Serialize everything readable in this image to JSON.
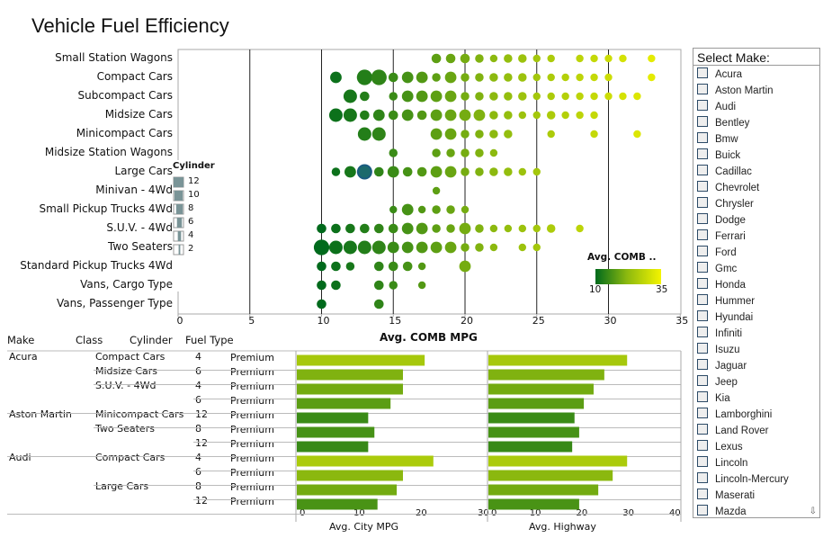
{
  "title": "Vehicle Fuel Efficiency",
  "chart_data": [
    {
      "type": "scatter",
      "title": "",
      "xlabel": "Avg. COMB MPG",
      "xlim": [
        0,
        35
      ],
      "xticks": [
        0,
        5,
        10,
        15,
        20,
        25,
        30,
        35
      ],
      "grid": "vertical",
      "categories": [
        "Small Station Wagons",
        "Compact Cars",
        "Subcompact Cars",
        "Midsize Cars",
        "Minicompact Cars",
        "Midsize Station Wagons",
        "Large Cars",
        "Minivan - 4Wd",
        "Small Pickup Trucks 4Wd",
        "S.U.V. - 4Wd",
        "Two Seaters",
        "Standard Pickup Trucks 4Wd",
        "Vans, Cargo Type",
        "Vans, Passenger Type"
      ],
      "size_legend": {
        "title": "Cylinder",
        "values": [
          12,
          10,
          8,
          6,
          4,
          2
        ]
      },
      "color_legend": {
        "title": "Avg. COMB ..",
        "min": 10,
        "max": 35,
        "colors": [
          "#006a1c",
          "#8cb90f",
          "#f4f400"
        ],
        "placement": "bottom-right"
      },
      "series": [
        {
          "category": "Small Station Wagons",
          "points": [
            [
              18,
              6
            ],
            [
              19,
              6
            ],
            [
              20,
              6
            ],
            [
              21,
              5
            ],
            [
              22,
              4
            ],
            [
              23,
              5
            ],
            [
              24,
              5
            ],
            [
              25,
              4
            ],
            [
              26,
              4
            ],
            [
              28,
              4
            ],
            [
              29,
              4
            ],
            [
              30,
              4
            ],
            [
              31,
              4
            ],
            [
              33,
              4
            ]
          ]
        },
        {
          "category": "Compact Cars",
          "points": [
            [
              11,
              8
            ],
            [
              13,
              12
            ],
            [
              14,
              12
            ],
            [
              15,
              6
            ],
            [
              16,
              8
            ],
            [
              17,
              8
            ],
            [
              18,
              5
            ],
            [
              19,
              8
            ],
            [
              20,
              5
            ],
            [
              21,
              5
            ],
            [
              22,
              5
            ],
            [
              23,
              5
            ],
            [
              24,
              5
            ],
            [
              25,
              4
            ],
            [
              26,
              4
            ],
            [
              27,
              4
            ],
            [
              28,
              4
            ],
            [
              29,
              4
            ],
            [
              30,
              4
            ],
            [
              33,
              4
            ]
          ]
        },
        {
          "category": "Subcompact Cars",
          "points": [
            [
              12,
              10
            ],
            [
              13,
              6
            ],
            [
              15,
              5
            ],
            [
              16,
              8
            ],
            [
              17,
              8
            ],
            [
              18,
              8
            ],
            [
              19,
              8
            ],
            [
              20,
              5
            ],
            [
              21,
              5
            ],
            [
              22,
              5
            ],
            [
              23,
              5
            ],
            [
              24,
              5
            ],
            [
              25,
              4
            ],
            [
              26,
              4
            ],
            [
              27,
              4
            ],
            [
              28,
              4
            ],
            [
              29,
              4
            ],
            [
              30,
              4
            ],
            [
              31,
              4
            ],
            [
              32,
              4
            ]
          ]
        },
        {
          "category": "Midsize Cars",
          "points": [
            [
              11,
              10
            ],
            [
              12,
              10
            ],
            [
              13,
              6
            ],
            [
              14,
              8
            ],
            [
              15,
              6
            ],
            [
              16,
              8
            ],
            [
              17,
              6
            ],
            [
              18,
              8
            ],
            [
              19,
              8
            ],
            [
              20,
              8
            ],
            [
              21,
              8
            ],
            [
              22,
              5
            ],
            [
              23,
              5
            ],
            [
              24,
              4
            ],
            [
              25,
              4
            ],
            [
              26,
              5
            ],
            [
              27,
              4
            ],
            [
              28,
              4
            ],
            [
              29,
              4
            ]
          ]
        },
        {
          "category": "Minicompact Cars",
          "points": [
            [
              13,
              10
            ],
            [
              14,
              10
            ],
            [
              18,
              8
            ],
            [
              19,
              8
            ],
            [
              20,
              5
            ],
            [
              21,
              5
            ],
            [
              22,
              5
            ],
            [
              23,
              5
            ],
            [
              26,
              4
            ],
            [
              29,
              4
            ],
            [
              32,
              4
            ]
          ]
        },
        {
          "category": "Midsize Station Wagons",
          "points": [
            [
              15,
              5
            ],
            [
              18,
              5
            ],
            [
              19,
              5
            ],
            [
              20,
              5
            ],
            [
              21,
              5
            ],
            [
              22,
              4
            ]
          ]
        },
        {
          "category": "Large Cars",
          "points": [
            [
              11,
              5
            ],
            [
              12,
              8
            ],
            [
              13,
              10
            ],
            [
              14,
              6
            ],
            [
              15,
              8
            ],
            [
              16,
              6
            ],
            [
              17,
              6
            ],
            [
              18,
              8
            ],
            [
              19,
              8
            ],
            [
              20,
              5
            ],
            [
              21,
              5
            ],
            [
              22,
              5
            ],
            [
              23,
              5
            ],
            [
              24,
              4
            ],
            [
              25,
              4
            ]
          ]
        },
        {
          "category": "Minivan - 4Wd",
          "points": [
            [
              18,
              4
            ]
          ]
        },
        {
          "category": "Small Pickup Trucks 4Wd",
          "points": [
            [
              15,
              4
            ],
            [
              16,
              8
            ],
            [
              17,
              4
            ],
            [
              18,
              5
            ],
            [
              19,
              5
            ],
            [
              20,
              4
            ]
          ]
        },
        {
          "category": "S.U.V. - 4Wd",
          "points": [
            [
              10,
              6
            ],
            [
              11,
              6
            ],
            [
              12,
              6
            ],
            [
              13,
              6
            ],
            [
              14,
              6
            ],
            [
              15,
              6
            ],
            [
              16,
              8
            ],
            [
              17,
              8
            ],
            [
              18,
              5
            ],
            [
              19,
              5
            ],
            [
              20,
              8
            ],
            [
              21,
              5
            ],
            [
              22,
              4
            ],
            [
              23,
              4
            ],
            [
              24,
              4
            ],
            [
              25,
              4
            ],
            [
              26,
              5
            ],
            [
              28,
              4
            ]
          ]
        },
        {
          "category": "Two Seaters",
          "points": [
            [
              10,
              12
            ],
            [
              11,
              10
            ],
            [
              12,
              10
            ],
            [
              13,
              10
            ],
            [
              14,
              10
            ],
            [
              15,
              8
            ],
            [
              16,
              8
            ],
            [
              17,
              8
            ],
            [
              18,
              8
            ],
            [
              19,
              8
            ],
            [
              20,
              5
            ],
            [
              21,
              5
            ],
            [
              22,
              4
            ],
            [
              24,
              4
            ],
            [
              25,
              4
            ]
          ]
        },
        {
          "category": "Standard Pickup Trucks 4Wd",
          "points": [
            [
              10,
              6
            ],
            [
              11,
              6
            ],
            [
              12,
              5
            ],
            [
              14,
              6
            ],
            [
              15,
              6
            ],
            [
              16,
              6
            ],
            [
              17,
              4
            ],
            [
              20,
              8
            ]
          ]
        },
        {
          "category": "Vans, Cargo Type",
          "points": [
            [
              10,
              6
            ],
            [
              11,
              6
            ],
            [
              14,
              6
            ],
            [
              15,
              5
            ],
            [
              17,
              4
            ]
          ]
        },
        {
          "category": "Vans, Passenger Type",
          "points": [
            [
              10,
              6
            ],
            [
              14,
              6
            ]
          ]
        }
      ]
    },
    {
      "type": "table",
      "columns": [
        "Make",
        "Class",
        "Cylinder",
        "Fuel Type"
      ],
      "rows": [
        {
          "make": "Acura",
          "class": "Compact Cars",
          "cyl": "4",
          "fuel": "Premium",
          "city": 20.6,
          "hwy": 29.8
        },
        {
          "make": "",
          "class": "Midsize Cars",
          "cyl": "6",
          "fuel": "Premium",
          "city": 17.1,
          "hwy": 24.9
        },
        {
          "make": "",
          "class": "S.U.V. - 4Wd",
          "cyl": "4",
          "fuel": "Premium",
          "city": 17.1,
          "hwy": 22.6
        },
        {
          "make": "",
          "class": "",
          "cyl": "6",
          "fuel": "Premium",
          "city": 15.1,
          "hwy": 20.5
        },
        {
          "make": "Aston Martin",
          "class": "Minicompact Cars",
          "cyl": "12",
          "fuel": "Premium",
          "city": 11.5,
          "hwy": 18.5
        },
        {
          "make": "",
          "class": "Two Seaters",
          "cyl": "8",
          "fuel": "Premium",
          "city": 12.5,
          "hwy": 19.5
        },
        {
          "make": "",
          "class": "",
          "cyl": "12",
          "fuel": "Premium",
          "city": 11.5,
          "hwy": 18.0
        },
        {
          "make": "Audi",
          "class": "Compact Cars",
          "cyl": "4",
          "fuel": "Premium",
          "city": 22.0,
          "hwy": 29.8
        },
        {
          "make": "",
          "class": "",
          "cyl": "6",
          "fuel": "Premium",
          "city": 17.1,
          "hwy": 26.7
        },
        {
          "make": "",
          "class": "Large Cars",
          "cyl": "8",
          "fuel": "Premium",
          "city": 16.1,
          "hwy": 23.6
        },
        {
          "make": "",
          "class": "",
          "cyl": "12",
          "fuel": "Premium",
          "city": 13.0,
          "hwy": 19.5
        }
      ],
      "city_axis": {
        "label": "Avg. City MPG",
        "xlim": [
          0,
          30
        ],
        "ticks": [
          0,
          10,
          20,
          30
        ]
      },
      "hwy_axis": {
        "label": "Avg. Highway",
        "xlim": [
          0,
          40
        ],
        "ticks": [
          0,
          10,
          20,
          30,
          40
        ]
      }
    }
  ],
  "select": {
    "label": "Select Make:",
    "items": [
      "Acura",
      "Aston Martin",
      "Audi",
      "Bentley",
      "Bmw",
      "Buick",
      "Cadillac",
      "Chevrolet",
      "Chrysler",
      "Dodge",
      "Ferrari",
      "Ford",
      "Gmc",
      "Honda",
      "Hummer",
      "Hyundai",
      "Infiniti",
      "Isuzu",
      "Jaguar",
      "Jeep",
      "Kia",
      "Lamborghini",
      "Land Rover",
      "Lexus",
      "Lincoln",
      "Lincoln-Mercury",
      "Maserati",
      "Mazda"
    ]
  }
}
